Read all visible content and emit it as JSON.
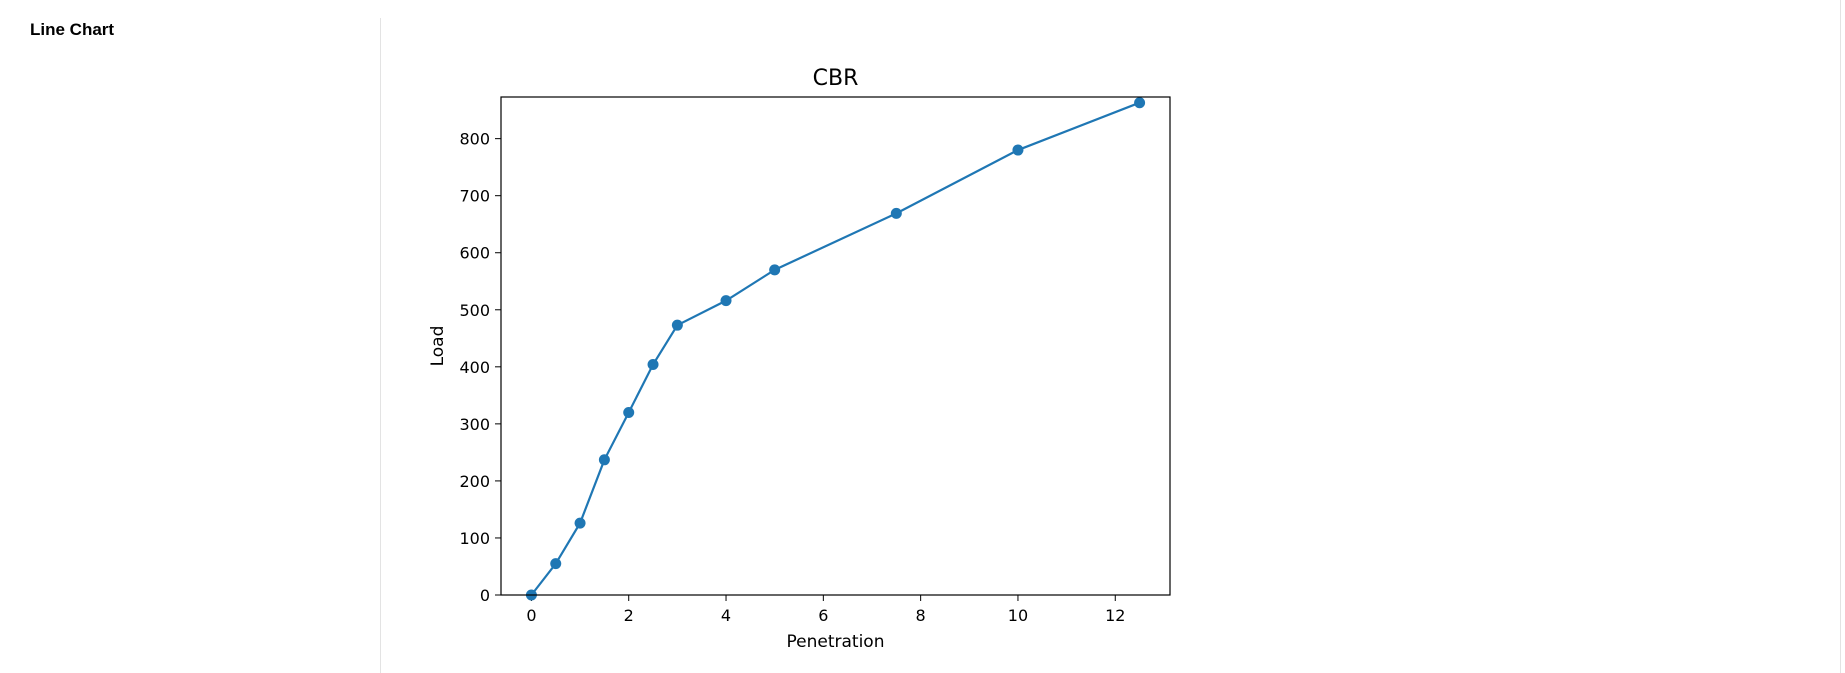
{
  "panel": {
    "title": "Line Chart"
  },
  "chart_data": {
    "type": "line",
    "title": "CBR",
    "xlabel": "Penetration",
    "ylabel": "Load",
    "x": [
      0,
      0.5,
      1,
      1.5,
      2,
      2.5,
      3,
      4,
      5,
      7.5,
      10,
      12.5
    ],
    "series": [
      {
        "values": [
          0,
          55,
          126,
          237,
          320,
          404,
          473,
          516,
          570,
          669,
          780,
          863
        ],
        "color": "#1f77b4"
      }
    ],
    "xlim": [
      -0.625,
      13.125
    ],
    "ylim": [
      0,
      873
    ],
    "xticks": [
      0,
      2,
      4,
      6,
      8,
      10,
      12
    ],
    "yticks": [
      0,
      100,
      200,
      300,
      400,
      500,
      600,
      700,
      800
    ],
    "markers": true,
    "grid": false,
    "legend": false
  }
}
